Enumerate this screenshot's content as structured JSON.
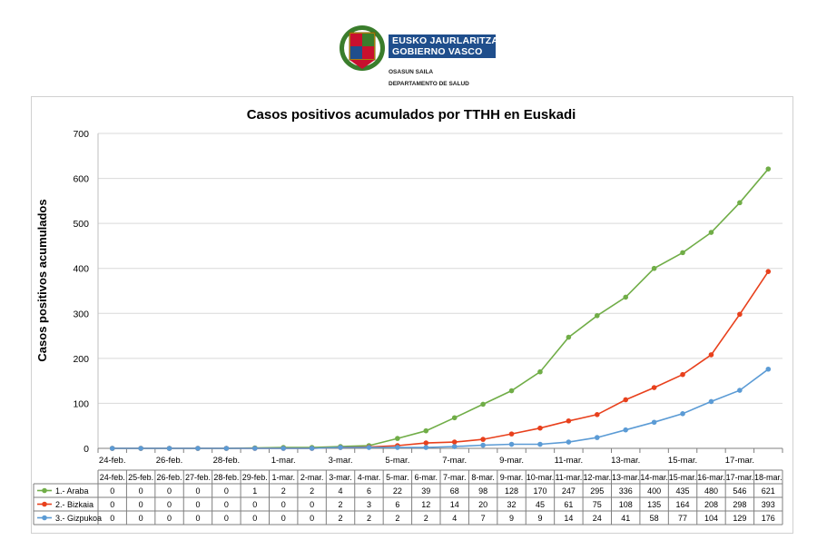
{
  "header": {
    "logo_line1": "EUSKO JAURLARITZA",
    "logo_line2": "GOBIERNO VASCO",
    "dept_line1": "OSASUN SAILA",
    "dept_line2": "DEPARTAMENTO DE SALUD",
    "logo_colors": {
      "band": "#1f4e8c",
      "shield_red": "#c8102e",
      "shield_green": "#3a7d2c",
      "shield_gold": "#d4a017"
    }
  },
  "chart_data": {
    "type": "line",
    "title": "Casos positivos acumulados por TTHH en Euskadi",
    "xlabel": "",
    "ylabel": "Casos positivos acumulados",
    "ylim": [
      0,
      700
    ],
    "yticks": [
      0,
      100,
      200,
      300,
      400,
      500,
      600,
      700
    ],
    "grid": true,
    "legend": "data-table-below",
    "categories": [
      "24-feb.",
      "25-feb.",
      "26-feb.",
      "27-feb.",
      "28-feb.",
      "29-feb.",
      "1-mar.",
      "2-mar.",
      "3-mar.",
      "4-mar.",
      "5-mar.",
      "6-mar.",
      "7-mar.",
      "8-mar.",
      "9-mar.",
      "10-mar.",
      "11-mar.",
      "12-mar.",
      "13-mar.",
      "14-mar.",
      "15-mar.",
      "16-mar.",
      "17-mar.",
      "18-mar."
    ],
    "axis_labels": [
      "24-feb.",
      "26-feb.",
      "28-feb.",
      "1-mar.",
      "3-mar.",
      "5-mar.",
      "7-mar.",
      "9-mar.",
      "11-mar.",
      "13-mar.",
      "15-mar.",
      "17-mar."
    ],
    "series": [
      {
        "name": "1.- Araba",
        "color": "#70ad47",
        "values": [
          0,
          0,
          0,
          0,
          0,
          1,
          2,
          2,
          4,
          6,
          22,
          39,
          68,
          98,
          128,
          170,
          247,
          295,
          336,
          400,
          435,
          480,
          546,
          621
        ]
      },
      {
        "name": "2.- Bizkaia",
        "color": "#e8401c",
        "values": [
          0,
          0,
          0,
          0,
          0,
          0,
          0,
          0,
          2,
          3,
          6,
          12,
          14,
          20,
          32,
          45,
          61,
          75,
          108,
          135,
          164,
          208,
          298,
          393
        ]
      },
      {
        "name": "3.- Gizpukoa",
        "color": "#5b9bd5",
        "values": [
          0,
          0,
          0,
          0,
          0,
          0,
          0,
          0,
          2,
          2,
          2,
          2,
          4,
          7,
          9,
          9,
          14,
          24,
          41,
          58,
          77,
          104,
          129,
          176
        ]
      }
    ]
  }
}
